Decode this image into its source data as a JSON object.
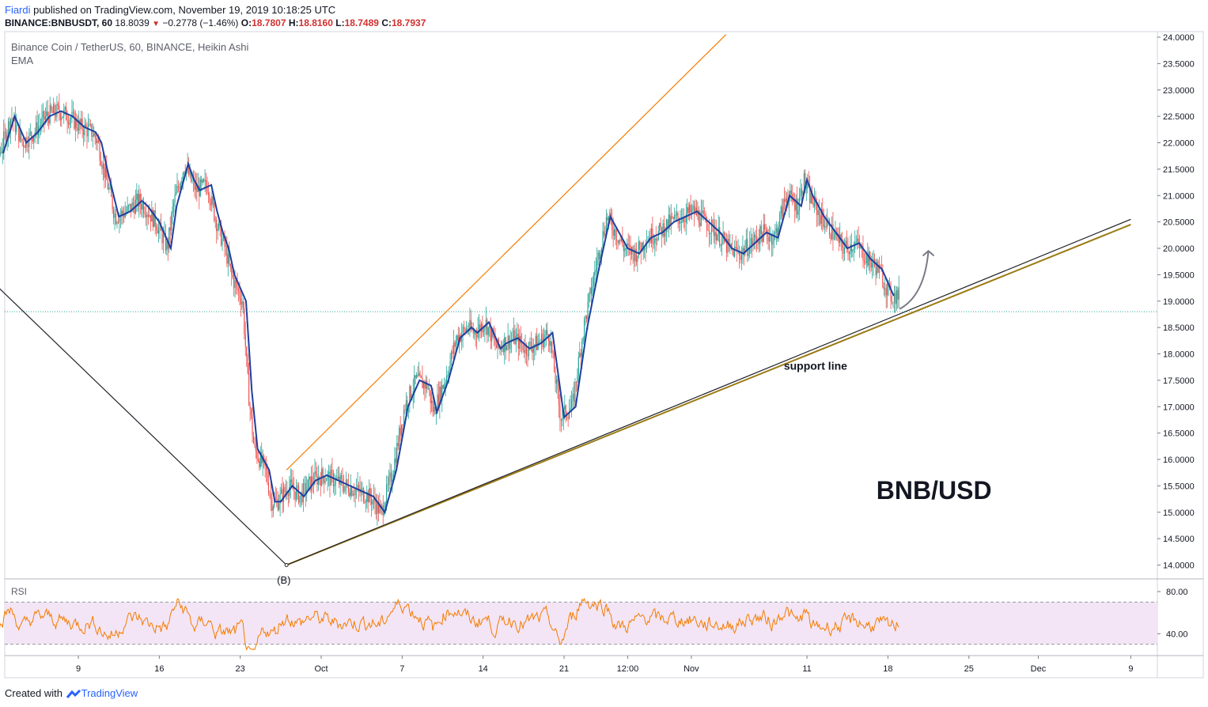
{
  "header": {
    "author": "Fiardi",
    "published": "published on TradingView.com, November 19, 2019 10:18:25 UTC",
    "symbol_line": "BINANCE:BNBUSDT, 60",
    "last": "18.8039",
    "change": "−0.2778 (−1.46%)",
    "open_label": "O:",
    "open": "18.7807",
    "high_label": "H:",
    "high": "18.8160",
    "low_label": "L:",
    "low": "18.7489",
    "close_label": "C:",
    "close": "18.7937"
  },
  "footer": {
    "created_with": "Created with",
    "brand": "TradingView"
  },
  "colors": {
    "bull": "#26a69a",
    "bear": "#ef5350",
    "ema": "#1e3f9e",
    "orange": "#f57c00",
    "support": "#9c7b14",
    "rsi": "#f57c00",
    "rsi_band": "#f3e5f5",
    "price_line": "#26a69a"
  },
  "chart_data": [
    {
      "type": "candlestick",
      "title": "Binance Coin / TetherUS, 60, BINANCE, Heikin Ashi",
      "indicator": "EMA",
      "style": "Heikin Ashi",
      "ylim": [
        13.95,
        24.0
      ],
      "y_ticks": [
        "24.0000",
        "23.5000",
        "23.0000",
        "22.5000",
        "22.0000",
        "21.5000",
        "21.0000",
        "20.5000",
        "20.0000",
        "19.5000",
        "19.0000",
        "18.5000",
        "18.0000",
        "17.5000",
        "17.0000",
        "16.5000",
        "16.0000",
        "15.5000",
        "15.0000",
        "14.5000",
        "14.0000"
      ],
      "x_ticks": [
        {
          "label": "9",
          "day": 9
        },
        {
          "label": "16",
          "day": 16
        },
        {
          "label": "23",
          "day": 23
        },
        {
          "label": "Oct",
          "day": 30
        },
        {
          "label": "7",
          "day": 37
        },
        {
          "label": "14",
          "day": 44
        },
        {
          "label": "21",
          "day": 51
        },
        {
          "label": "12:00",
          "day": 56.5
        },
        {
          "label": "Nov",
          "day": 62
        },
        {
          "label": "11",
          "day": 72
        },
        {
          "label": "18",
          "day": 79
        },
        {
          "label": "25",
          "day": 86
        },
        {
          "label": "Dec",
          "day": 92
        },
        {
          "label": "9",
          "day": 100
        }
      ],
      "ema_series": {
        "name": "EMA",
        "day": [
          2.5,
          3.5,
          4.5,
          5.5,
          6.5,
          7.5,
          8.5,
          9.5,
          10.5,
          11,
          11.5,
          12.5,
          13.5,
          14.5,
          15,
          16,
          17,
          17.5,
          18.5,
          19,
          19.5,
          20.5,
          21,
          21.5,
          22,
          22.5,
          23.5,
          24,
          24.5,
          25,
          25.5,
          26,
          26.5,
          27.5,
          28.5,
          29.5,
          30.5,
          31.5,
          32.5,
          33.5,
          34.5,
          35.5,
          36.5,
          37.5,
          38.5,
          39.5,
          40,
          41,
          42,
          43,
          43.5,
          44.5,
          45.5,
          46,
          47,
          48,
          49,
          50,
          51,
          52,
          53,
          54,
          55,
          56.5,
          57.5,
          58.5,
          59.5,
          60.5,
          61.5,
          62.5,
          63.5,
          64.5,
          65.5,
          66.5,
          67.5,
          68.5,
          69.5,
          70.5,
          71.5,
          72,
          72.5,
          73.5,
          74.5,
          75.5,
          76.5,
          77.5,
          78.5,
          79.5
        ],
        "values": [
          21.8,
          22.5,
          22.0,
          22.2,
          22.5,
          22.6,
          22.5,
          22.3,
          22.2,
          22.0,
          21.5,
          20.6,
          20.7,
          20.9,
          20.8,
          20.5,
          20.0,
          20.8,
          21.6,
          21.3,
          21.1,
          21.2,
          20.7,
          20.3,
          20.0,
          19.5,
          19.0,
          17.3,
          16.2,
          16.0,
          15.8,
          15.2,
          15.2,
          15.5,
          15.3,
          15.6,
          15.7,
          15.6,
          15.5,
          15.4,
          15.3,
          15.0,
          15.8,
          17.0,
          17.5,
          17.4,
          16.9,
          17.5,
          18.3,
          18.5,
          18.4,
          18.6,
          18.1,
          18.2,
          18.3,
          18.1,
          18.2,
          18.4,
          16.8,
          17.0,
          18.5,
          19.6,
          20.6,
          20.0,
          19.9,
          20.2,
          20.3,
          20.5,
          20.6,
          20.7,
          20.5,
          20.3,
          20.0,
          19.9,
          20.1,
          20.3,
          20.2,
          21.0,
          20.8,
          21.3,
          21.0,
          20.6,
          20.3,
          20.0,
          20.1,
          19.8,
          19.6,
          19.1
        ]
      },
      "current_price": 18.8,
      "annotations": [
        {
          "type": "trendline",
          "color": "orange",
          "from": {
            "day": 27,
            "price": 15.8
          },
          "to": {
            "day": 65,
            "price": 24.05
          }
        },
        {
          "type": "trendline",
          "color": "dark",
          "from": {
            "day": 0,
            "price": 19.7
          },
          "to": {
            "day": 27,
            "price": 14.0
          }
        },
        {
          "type": "trendline",
          "color": "support",
          "from": {
            "day": 27,
            "price": 14.0
          },
          "to": {
            "day": 100,
            "price": 20.45
          }
        },
        {
          "type": "trendline",
          "color": "dark",
          "from": {
            "day": 27,
            "price": 14.0
          },
          "to": {
            "day": 100,
            "price": 20.55
          }
        },
        {
          "type": "arrow",
          "from": {
            "day": 80,
            "price": 18.85
          },
          "to": {
            "day": 82.5,
            "price": 19.95
          }
        },
        {
          "type": "text",
          "label": "support line",
          "day": 70,
          "price": 17.7
        },
        {
          "type": "text",
          "label": "BNB/USD",
          "day": 78,
          "price": 15.25
        }
      ],
      "pivot_label": "(B)"
    },
    {
      "type": "line",
      "title": "RSI",
      "ylim": [
        20,
        90
      ],
      "y_ticks": [
        "80.00",
        "40.00"
      ],
      "band": [
        30,
        70
      ],
      "series": [
        {
          "name": "RSI",
          "mean": 52,
          "range": [
            25,
            88
          ]
        }
      ]
    }
  ]
}
